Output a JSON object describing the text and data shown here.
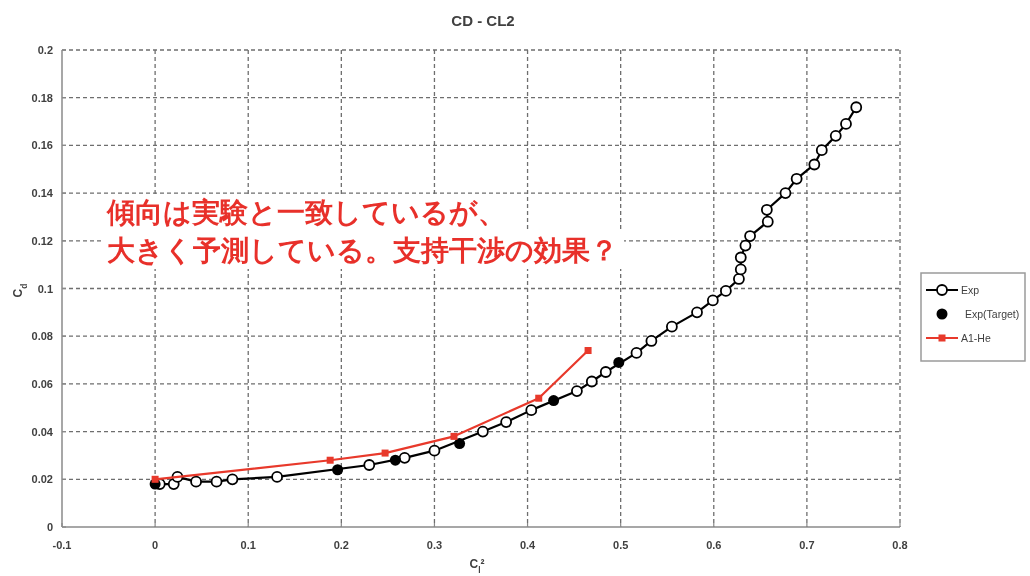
{
  "chart_data": {
    "type": "line",
    "title": "CD - CL2",
    "xlabel": "C$_{l}$²",
    "ylabel": "C$_{d}$",
    "annotations": [
      "傾向は実験と一致しているが、",
      "大きく予測している。支持干渉の効果？"
    ],
    "xlim": [
      -0.1,
      0.8
    ],
    "ylim": [
      0,
      0.2
    ],
    "xticks": [
      -0.1,
      0,
      0.1,
      0.2,
      0.3,
      0.4,
      0.5,
      0.6,
      0.7,
      0.8
    ],
    "yticks": [
      0,
      0.02,
      0.04,
      0.06,
      0.08,
      0.1,
      0.12,
      0.14,
      0.16,
      0.18,
      0.2
    ],
    "grid": true,
    "legend": "right",
    "series": [
      {
        "name": "Exp",
        "marker": "circle",
        "color": "#000000",
        "x": [
          0.005,
          0.02,
          0.024,
          0.044,
          0.066,
          0.083,
          0.131,
          0.23,
          0.268,
          0.3,
          0.352,
          0.377,
          0.404,
          0.453,
          0.469,
          0.484,
          0.517,
          0.533,
          0.555,
          0.582,
          0.599,
          0.613,
          0.627,
          0.629,
          0.629,
          0.634,
          0.639,
          0.658,
          0.657,
          0.677,
          0.689,
          0.708,
          0.716,
          0.731,
          0.742,
          0.753
        ],
        "values": [
          0.018,
          0.018,
          0.021,
          0.019,
          0.019,
          0.02,
          0.021,
          0.026,
          0.029,
          0.032,
          0.04,
          0.044,
          0.049,
          0.057,
          0.061,
          0.065,
          0.073,
          0.078,
          0.084,
          0.09,
          0.095,
          0.099,
          0.104,
          0.108,
          0.113,
          0.118,
          0.122,
          0.128,
          0.133,
          0.14,
          0.146,
          0.152,
          0.158,
          0.164,
          0.169,
          0.176
        ]
      },
      {
        "name": "Exp(Target)",
        "type": "scatter",
        "marker": "circle",
        "color": "#000000",
        "x": [
          0,
          0.196,
          0.258,
          0.327,
          0.428,
          0.498
        ],
        "values": [
          0.018,
          0.024,
          0.028,
          0.035,
          0.053,
          0.069
        ]
      },
      {
        "name": "A1-He",
        "marker": "square",
        "color": "#e8392b",
        "x": [
          0,
          0.188,
          0.247,
          0.321,
          0.412,
          0.465
        ],
        "values": [
          0.02,
          0.028,
          0.031,
          0.038,
          0.054,
          0.074
        ]
      }
    ]
  }
}
